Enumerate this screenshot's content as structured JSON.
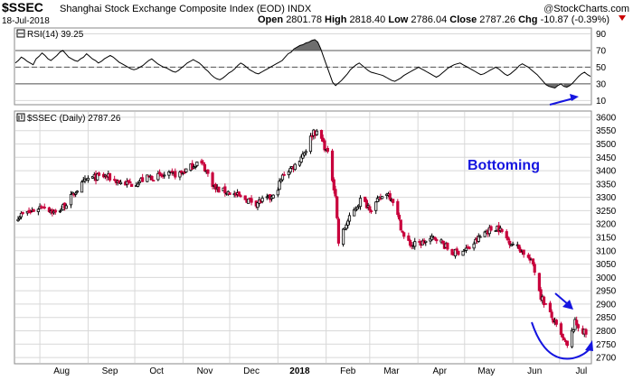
{
  "header": {
    "ticker": "$SSEC",
    "index_name": "Shanghai Stock Exchange Composite Index (EOD)",
    "index_tag": "INDX",
    "date": "18-Jul-2018",
    "credit_prefix": "@",
    "credit": "StockCharts.com",
    "open_label": "Open",
    "open": "2801.78",
    "high_label": "High",
    "high": "2818.40",
    "low_label": "Low",
    "low": "2786.04",
    "close_label": "Close",
    "close": "2787.26",
    "chg_label": "Chg",
    "chg": "-10.87 (-0.39%)"
  },
  "colors": {
    "up_candle": "#000000",
    "down_candle": "#c8003c",
    "annotation": "#1515e0",
    "rsi_line": "#000000",
    "rsi_fill": "#555555",
    "grid": "#d8d8d8"
  },
  "annotations": {
    "bottoming": "Bottoming"
  },
  "chart_data": [
    {
      "type": "line",
      "panel": "rsi",
      "legend_label": "RSI(14) 39.25",
      "y_ticks": [
        10,
        30,
        50,
        70,
        90
      ],
      "ylim": [
        5,
        97
      ],
      "reference_levels": [
        30,
        50,
        70
      ],
      "series": [
        {
          "name": "RSI(14)",
          "values": [
            55,
            58,
            62,
            60,
            57,
            55,
            53,
            60,
            63,
            67,
            64,
            60,
            58,
            61,
            64,
            68,
            70,
            66,
            62,
            60,
            58,
            57,
            60,
            62,
            66,
            63,
            60,
            58,
            55,
            57,
            60,
            62,
            64,
            62,
            59,
            56,
            54,
            52,
            50,
            48,
            47,
            48,
            50,
            52,
            55,
            58,
            60,
            57,
            54,
            52,
            50,
            49,
            47,
            45,
            44,
            46,
            49,
            52,
            55,
            57,
            59,
            57,
            55,
            52,
            48,
            45,
            41,
            38,
            36,
            35,
            37,
            40,
            43,
            45,
            48,
            52,
            55,
            53,
            50,
            47,
            45,
            43,
            42,
            44,
            46,
            48,
            50,
            52,
            54,
            56,
            58,
            62,
            66,
            68,
            72,
            74,
            76,
            77,
            79,
            80,
            82,
            83,
            80,
            72,
            62,
            52,
            42,
            32,
            28,
            31,
            34,
            38,
            42,
            47,
            50,
            53,
            55,
            52,
            49,
            46,
            44,
            43,
            42,
            41,
            40,
            38,
            36,
            34,
            33,
            35,
            37,
            40,
            42,
            44,
            46,
            48,
            50,
            48,
            46,
            44,
            42,
            40,
            38,
            40,
            43,
            46,
            49,
            51,
            53,
            54,
            55,
            53,
            51,
            49,
            47,
            45,
            43,
            41,
            42,
            44,
            46,
            48,
            50,
            48,
            45,
            42,
            40,
            42,
            45,
            48,
            52,
            54,
            52,
            50,
            47,
            44,
            41,
            37,
            33,
            29,
            27,
            26,
            25,
            28,
            30,
            27,
            26,
            28,
            31,
            35,
            39,
            42,
            44,
            41,
            39
          ]
        }
      ]
    },
    {
      "type": "candlestick",
      "panel": "price",
      "legend_label": "$SSEC (Daily) 2787.26",
      "x_tick_labels": [
        "Aug",
        "Sep",
        "Oct",
        "Nov",
        "Dec",
        "2018",
        "Feb",
        "Mar",
        "Apr",
        "May",
        "Jun",
        "Jul"
      ],
      "y_ticks": [
        2700,
        2750,
        2800,
        2850,
        2900,
        2950,
        3000,
        3050,
        3100,
        3150,
        3200,
        3250,
        3300,
        3350,
        3400,
        3450,
        3500,
        3550,
        3600
      ],
      "ylim": [
        2680,
        3620
      ],
      "close_anchor_dates": [
        "2017-07-18",
        "2017-07-26",
        "2017-08-03",
        "2017-08-11",
        "2017-08-17",
        "2017-08-25",
        "2017-09-01",
        "2017-09-12",
        "2017-09-22",
        "2017-09-29",
        "2017-10-10",
        "2017-10-20",
        "2017-10-31",
        "2017-11-10",
        "2017-11-14",
        "2017-11-22",
        "2017-11-30",
        "2017-12-08",
        "2017-12-18",
        "2017-12-29",
        "2018-01-05",
        "2018-01-12",
        "2018-01-19",
        "2018-01-24",
        "2018-01-29",
        "2018-02-02",
        "2018-02-07",
        "2018-02-09",
        "2018-02-14",
        "2018-02-23",
        "2018-03-02",
        "2018-03-12",
        "2018-03-16",
        "2018-03-23",
        "2018-03-28",
        "2018-04-04",
        "2018-04-13",
        "2018-04-23",
        "2018-05-04",
        "2018-05-14",
        "2018-05-22",
        "2018-05-29",
        "2018-06-07",
        "2018-06-14",
        "2018-06-19",
        "2018-06-26",
        "2018-07-02",
        "2018-07-06",
        "2018-07-11",
        "2018-07-18"
      ],
      "close_anchors": [
        3230,
        3245,
        3270,
        3240,
        3270,
        3330,
        3370,
        3380,
        3355,
        3350,
        3375,
        3380,
        3390,
        3430,
        3420,
        3330,
        3320,
        3300,
        3280,
        3300,
        3390,
        3420,
        3480,
        3550,
        3520,
        3460,
        3310,
        3130,
        3200,
        3290,
        3260,
        3320,
        3290,
        3150,
        3120,
        3130,
        3150,
        3090,
        3110,
        3170,
        3190,
        3140,
        3100,
        3050,
        2930,
        2850,
        2780,
        2740,
        2830,
        2787
      ]
    }
  ]
}
